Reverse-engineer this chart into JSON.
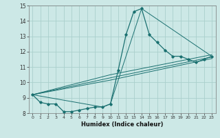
{
  "title": "",
  "xlabel": "Humidex (Indice chaleur)",
  "ylabel": "",
  "background_color": "#cce8e6",
  "grid_color": "#aacfcc",
  "line_color": "#1a7070",
  "xlim": [
    -0.5,
    23.5
  ],
  "ylim": [
    8,
    15
  ],
  "xticks": [
    0,
    1,
    2,
    3,
    4,
    5,
    6,
    7,
    8,
    9,
    10,
    11,
    12,
    13,
    14,
    15,
    16,
    17,
    18,
    19,
    20,
    21,
    22,
    23
  ],
  "yticks": [
    8,
    9,
    10,
    11,
    12,
    13,
    14,
    15
  ],
  "line1_x": [
    0,
    1,
    2,
    3,
    4,
    5,
    6,
    7,
    8,
    9,
    10,
    11,
    12,
    13,
    14,
    15,
    16,
    17,
    18,
    19,
    20,
    21,
    22,
    23
  ],
  "line1_y": [
    9.2,
    8.7,
    8.6,
    8.6,
    8.1,
    8.1,
    8.2,
    8.3,
    8.4,
    8.4,
    8.6,
    10.8,
    13.1,
    14.6,
    14.8,
    13.1,
    12.6,
    12.1,
    11.7,
    11.7,
    11.5,
    11.3,
    11.5,
    11.7
  ],
  "line2_x": [
    0,
    9,
    10,
    14,
    23
  ],
  "line2_y": [
    9.2,
    8.4,
    8.6,
    14.8,
    11.7
  ],
  "line3_x": [
    0,
    10,
    23
  ],
  "line3_y": [
    9.2,
    10.5,
    11.8
  ],
  "line4_x": [
    0,
    10,
    23
  ],
  "line4_y": [
    9.2,
    10.3,
    11.65
  ],
  "line5_x": [
    0,
    10,
    23
  ],
  "line5_y": [
    9.2,
    10.15,
    11.55
  ]
}
